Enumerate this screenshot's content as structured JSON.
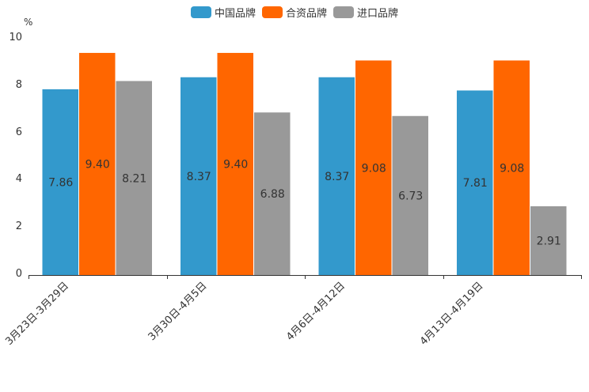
{
  "chart_data": {
    "type": "bar",
    "title": "",
    "unit": "%",
    "categories": [
      "3月23日-3月29日",
      "3月30日-4月5日",
      "4月6日-4月12日",
      "4月13日-4月19日"
    ],
    "series": [
      {
        "name": "中国品牌",
        "color": "#3399cc",
        "values": [
          7.86,
          8.37,
          8.37,
          7.81
        ],
        "labels": [
          "7.86",
          "8.37",
          "8.37",
          "7.81"
        ]
      },
      {
        "name": "合资品牌",
        "color": "#ff6600",
        "values": [
          9.4,
          9.4,
          9.08,
          9.08
        ],
        "labels": [
          "9.40",
          "9.40",
          "9.08",
          "9.08"
        ]
      },
      {
        "name": "进口品牌",
        "color": "#999999",
        "values": [
          8.21,
          6.88,
          6.73,
          2.91
        ],
        "labels": [
          "8.21",
          "6.88",
          "6.73",
          "2.91"
        ]
      }
    ],
    "ylim": [
      0,
      10
    ],
    "yticks": [
      "0",
      "2",
      "4",
      "6",
      "8",
      "10"
    ],
    "grid": false,
    "legend": "top-center"
  }
}
